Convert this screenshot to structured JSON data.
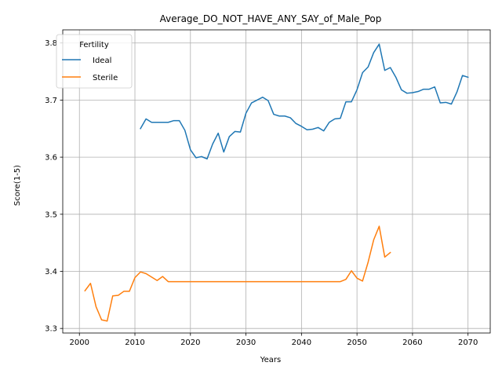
{
  "chart_data": {
    "type": "line",
    "title": "Average_DO_NOT_HAVE_ANY_SAY_of_Male_Pop",
    "xlabel": "Years",
    "ylabel": "Score(1-5)",
    "xlim": [
      1997,
      2074
    ],
    "ylim": [
      3.292,
      3.823
    ],
    "xticks": [
      2000,
      2010,
      2020,
      2030,
      2040,
      2050,
      2060,
      2070
    ],
    "yticks": [
      3.3,
      3.4,
      3.5,
      3.6,
      3.7,
      3.8
    ],
    "xtick_labels": [
      "2000",
      "2010",
      "2020",
      "2030",
      "2040",
      "2050",
      "2060",
      "2070"
    ],
    "ytick_labels": [
      "3.3",
      "3.4",
      "3.5",
      "3.6",
      "3.7",
      "3.8"
    ],
    "grid": true,
    "legend": {
      "title": "Fertility",
      "position": "top-left"
    },
    "series": [
      {
        "name": "Ideal",
        "color": "#1f77b4",
        "x": [
          2011,
          2012,
          2013,
          2014,
          2015,
          2016,
          2017,
          2018,
          2019,
          2020,
          2021,
          2022,
          2023,
          2024,
          2025,
          2026,
          2027,
          2028,
          2029,
          2030,
          2031,
          2032,
          2033,
          2034,
          2035,
          2036,
          2037,
          2038,
          2039,
          2040,
          2041,
          2042,
          2043,
          2044,
          2045,
          2046,
          2047,
          2048,
          2049,
          2050,
          2051,
          2052,
          2053,
          2054,
          2055,
          2056,
          2057,
          2058,
          2059,
          2060,
          2061,
          2062,
          2063,
          2064,
          2065,
          2066,
          2067,
          2068,
          2069,
          2070
        ],
        "y": [
          3.65,
          3.667,
          3.661,
          3.661,
          3.661,
          3.661,
          3.664,
          3.664,
          3.647,
          3.613,
          3.599,
          3.601,
          3.597,
          3.623,
          3.642,
          3.609,
          3.636,
          3.645,
          3.644,
          3.677,
          3.695,
          3.7,
          3.705,
          3.699,
          3.675,
          3.672,
          3.672,
          3.669,
          3.659,
          3.654,
          3.648,
          3.649,
          3.652,
          3.646,
          3.661,
          3.667,
          3.668,
          3.697,
          3.697,
          3.718,
          3.748,
          3.758,
          3.783,
          3.798,
          3.752,
          3.757,
          3.74,
          3.718,
          3.712,
          3.713,
          3.715,
          3.719,
          3.719,
          3.723,
          3.695,
          3.696,
          3.693,
          3.714,
          3.743,
          3.74
        ]
      },
      {
        "name": "Sterile",
        "color": "#ff7f0e",
        "x": [
          2001,
          2002,
          2003,
          2004,
          2005,
          2006,
          2007,
          2008,
          2009,
          2010,
          2011,
          2012,
          2013,
          2014,
          2015,
          2016,
          2017,
          2018,
          2019,
          2020,
          2021,
          2022,
          2023,
          2024,
          2025,
          2026,
          2027,
          2028,
          2029,
          2030,
          2031,
          2032,
          2033,
          2034,
          2035,
          2036,
          2037,
          2038,
          2039,
          2040,
          2041,
          2042,
          2043,
          2044,
          2045,
          2046,
          2047,
          2048,
          2049,
          2050,
          2051,
          2052,
          2053,
          2054,
          2055,
          2056
        ],
        "y": [
          3.366,
          3.379,
          3.338,
          3.315,
          3.313,
          3.357,
          3.358,
          3.365,
          3.365,
          3.389,
          3.399,
          3.396,
          3.39,
          3.384,
          3.391,
          3.382,
          3.382,
          3.382,
          3.382,
          3.382,
          3.382,
          3.382,
          3.382,
          3.382,
          3.382,
          3.382,
          3.382,
          3.382,
          3.382,
          3.382,
          3.382,
          3.382,
          3.382,
          3.382,
          3.382,
          3.382,
          3.382,
          3.382,
          3.382,
          3.382,
          3.382,
          3.382,
          3.382,
          3.382,
          3.382,
          3.382,
          3.382,
          3.386,
          3.401,
          3.388,
          3.383,
          3.416,
          3.455,
          3.479,
          3.425,
          3.433
        ]
      }
    ]
  }
}
